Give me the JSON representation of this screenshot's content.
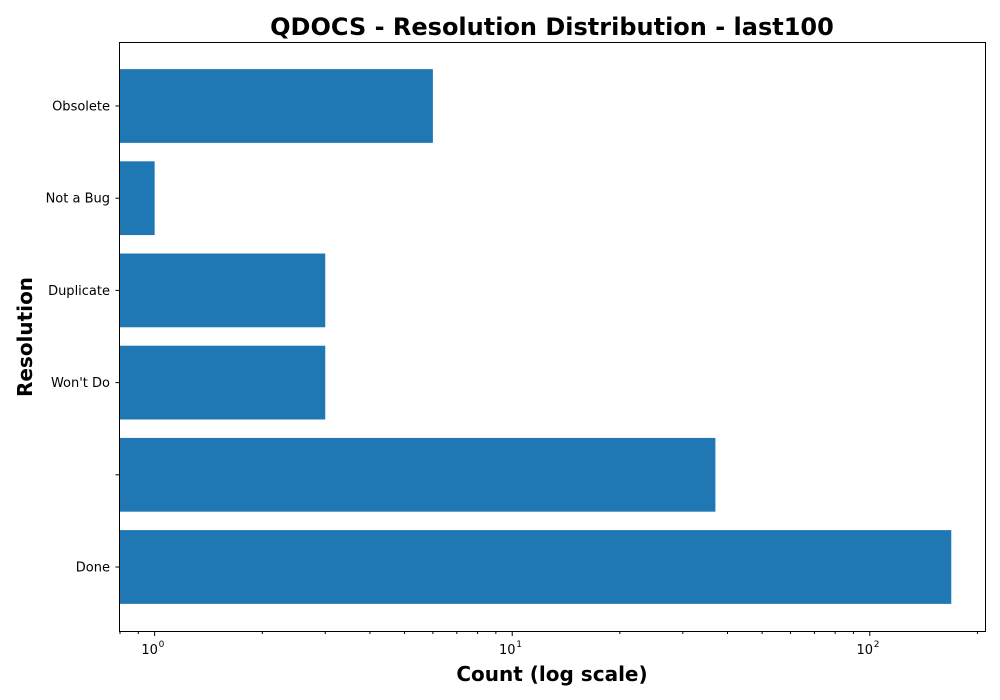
{
  "chart_data": {
    "type": "bar",
    "orientation": "horizontal",
    "title": "QDOCS - Resolution Distribution - last100",
    "xlabel": "Count (log scale)",
    "ylabel": "Resolution",
    "x_scale": "log",
    "xlim": [
      0.8,
      210
    ],
    "categories": [
      "Done",
      "",
      "Won't Do",
      "Duplicate",
      "Not a Bug",
      "Obsolete"
    ],
    "values": [
      169,
      37,
      3,
      3,
      1,
      6
    ],
    "x_major_ticks": [
      {
        "value": 1,
        "base": "10",
        "exp": "0"
      },
      {
        "value": 10,
        "base": "10",
        "exp": "1"
      },
      {
        "value": 100,
        "base": "10",
        "exp": "2"
      }
    ],
    "bar_color": "#1f77b4",
    "grid": false,
    "legend": "none"
  }
}
